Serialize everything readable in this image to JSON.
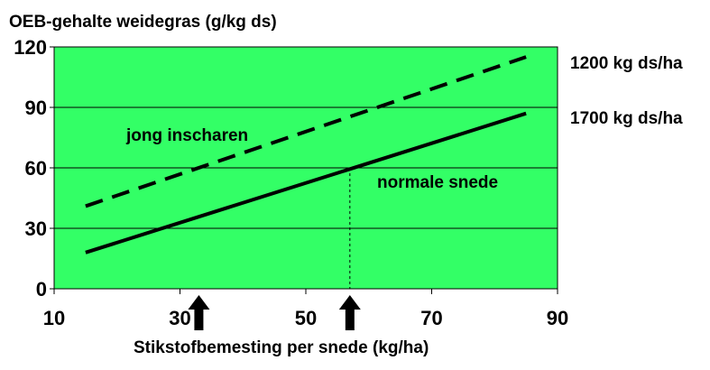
{
  "chart_data": {
    "type": "line",
    "ylabel": "OEB-gehalte weidegras (g/kg ds)",
    "xlabel": "Stikstofbemesting per snede (kg/ha)",
    "xlim": [
      10,
      90
    ],
    "ylim": [
      0,
      120
    ],
    "xticks": [
      "10",
      "30",
      "50",
      "70",
      "90"
    ],
    "yticks": [
      "0",
      "30",
      "60",
      "90",
      "120"
    ],
    "grid": "horizontal",
    "background": "#33ff66",
    "series": [
      {
        "name": "1200 kg ds/ha",
        "label": "jong inscharen",
        "style": "dashed",
        "x": [
          15,
          85
        ],
        "y": [
          41,
          115
        ]
      },
      {
        "name": "1700 kg ds/ha",
        "label": "normale snede",
        "style": "solid",
        "x": [
          15,
          85
        ],
        "y": [
          18,
          87
        ]
      }
    ],
    "reference_line": {
      "x": 57,
      "y": 60
    },
    "arrows_at_x": [
      33,
      57
    ]
  }
}
